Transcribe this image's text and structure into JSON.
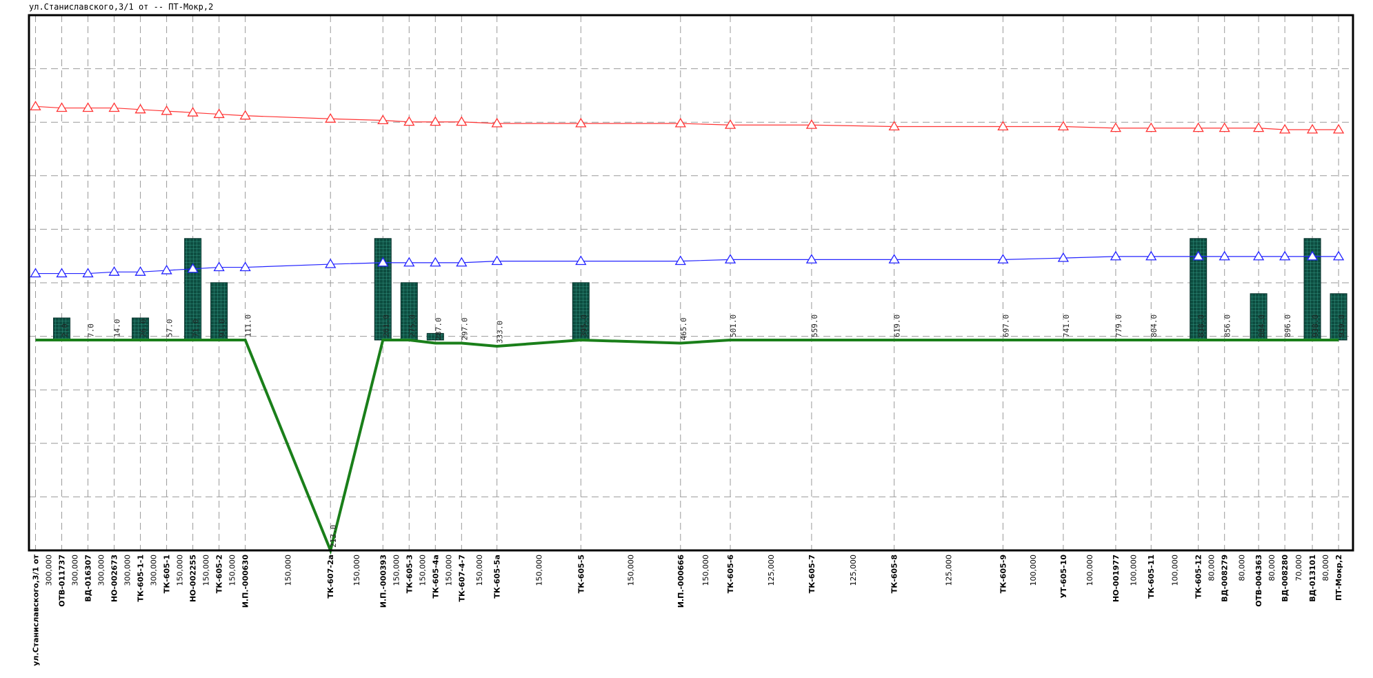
{
  "title": "ул.Станиславского,3/1 от -- ПТ-Мокр,2",
  "colors": {
    "upper_line": "#ff3333",
    "lower_line": "#2222ff",
    "profile_line": "#1a7f1a",
    "bars": "#0d4d40",
    "bars_grid": "#3aa690",
    "grid": "#999999",
    "frame": "#000000"
  },
  "chart_data": {
    "type": "line",
    "x_range": [
      -5,
      1005
    ],
    "nodes": [
      {
        "name": "ул.Станиславского,3/1 от",
        "x": 0,
        "upper": 95.1,
        "lower": 84.3,
        "ground": 80,
        "bar": 0,
        "dist_label": ""
      },
      {
        "name": "ОТВ-011737",
        "x": 20,
        "upper": 95.0,
        "lower": 84.3,
        "ground": 80,
        "bar": 1.0,
        "dist_label": "2.0"
      },
      {
        "name": "ВД-016307",
        "x": 40,
        "upper": 95.0,
        "lower": 84.3,
        "ground": 80,
        "bar": 0,
        "dist_label": "7.0"
      },
      {
        "name": "НО-002673",
        "x": 60,
        "upper": 95.0,
        "lower": 84.4,
        "ground": 80,
        "bar": 0,
        "dist_label": "14.0"
      },
      {
        "name": "ТК-605-1-1",
        "x": 80,
        "upper": 94.9,
        "lower": 84.4,
        "ground": 80,
        "bar": 1.0,
        "dist_label": "26.0"
      },
      {
        "name": "ТК-605-1",
        "x": 100,
        "upper": 94.8,
        "lower": 84.5,
        "ground": 80,
        "bar": 0,
        "dist_label": "57.0"
      },
      {
        "name": "НО-002255",
        "x": 120,
        "upper": 94.7,
        "lower": 84.6,
        "ground": 80,
        "bar": 4.6,
        "dist_label": "71.0"
      },
      {
        "name": "ТК-605-2",
        "x": 140,
        "upper": 94.6,
        "lower": 84.7,
        "ground": 80,
        "bar": 2.6,
        "dist_label": "91.0"
      },
      {
        "name": "И.П.-000630",
        "x": 160,
        "upper": 94.5,
        "lower": 84.7,
        "ground": 80,
        "bar": 0,
        "dist_label": "111.0"
      },
      {
        "name": "ТК-607-2а",
        "x": 225,
        "upper": 94.3,
        "lower": 84.9,
        "ground": 66.4,
        "bar": 0,
        "dist_label": "213.0"
      },
      {
        "name": "И.П.-000393",
        "x": 265,
        "upper": 94.2,
        "lower": 85.0,
        "ground": 80,
        "bar": 4.6,
        "dist_label": "261.0"
      },
      {
        "name": "ТК-605-3",
        "x": 285,
        "upper": 94.1,
        "lower": 85.0,
        "ground": 80,
        "bar": 2.6,
        "dist_label": "275.0"
      },
      {
        "name": "ТК-605-4а",
        "x": 305,
        "upper": 94.1,
        "lower": 85.0,
        "ground": 79.8,
        "bar": 0.3,
        "dist_label": "287.0"
      },
      {
        "name": "ТК-607-4-7",
        "x": 325,
        "upper": 94.1,
        "lower": 85.0,
        "ground": 79.8,
        "bar": 0,
        "dist_label": "297.0"
      },
      {
        "name": "ТК-605-5а",
        "x": 352,
        "upper": 94.0,
        "lower": 85.1,
        "ground": 79.6,
        "bar": 0,
        "dist_label": "333.0"
      },
      {
        "name": "ТК-605-5",
        "x": 416,
        "upper": 94.0,
        "lower": 85.1,
        "ground": 80,
        "bar": 2.6,
        "dist_label": "395.0"
      },
      {
        "name": "И.П.-000666",
        "x": 492,
        "upper": 94.0,
        "lower": 85.1,
        "ground": 79.8,
        "bar": 0,
        "dist_label": "465.0"
      },
      {
        "name": "ТК-605-6",
        "x": 530,
        "upper": 93.9,
        "lower": 85.2,
        "ground": 80,
        "bar": 0,
        "dist_label": "501.0"
      },
      {
        "name": "ТК-605-7",
        "x": 592,
        "upper": 93.9,
        "lower": 85.2,
        "ground": 80,
        "bar": 0,
        "dist_label": "559.0"
      },
      {
        "name": "ТК-605-8",
        "x": 655,
        "upper": 93.8,
        "lower": 85.2,
        "ground": 80,
        "bar": 0,
        "dist_label": "619.0"
      },
      {
        "name": "ТК-605-9",
        "x": 738,
        "upper": 93.8,
        "lower": 85.2,
        "ground": 80,
        "bar": 0,
        "dist_label": "697.0"
      },
      {
        "name": "УТ-605-10",
        "x": 784,
        "upper": 93.8,
        "lower": 85.3,
        "ground": 80,
        "bar": 0,
        "dist_label": "741.0"
      },
      {
        "name": "НО-001977",
        "x": 824,
        "upper": 93.7,
        "lower": 85.4,
        "ground": 80,
        "bar": 0,
        "dist_label": "779.0"
      },
      {
        "name": "ТК-605-11",
        "x": 851,
        "upper": 93.7,
        "lower": 85.4,
        "ground": 80,
        "bar": 0,
        "dist_label": "804.0"
      },
      {
        "name": "ТК-605-12",
        "x": 887,
        "upper": 93.7,
        "lower": 85.4,
        "ground": 80,
        "bar": 4.6,
        "dist_label": "838.0"
      },
      {
        "name": "ВД-008279",
        "x": 907,
        "upper": 93.7,
        "lower": 85.4,
        "ground": 80,
        "bar": 0,
        "dist_label": "856.0"
      },
      {
        "name": "ОТВ-004363",
        "x": 933,
        "upper": 93.7,
        "lower": 85.4,
        "ground": 80,
        "bar": 2.1,
        "dist_label": "884.0"
      },
      {
        "name": "ВД-008280",
        "x": 953,
        "upper": 93.6,
        "lower": 85.4,
        "ground": 80,
        "bar": 0,
        "dist_label": "896.0"
      },
      {
        "name": "ВД-013101",
        "x": 974,
        "upper": 93.6,
        "lower": 85.4,
        "ground": 80,
        "bar": 4.6,
        "dist_label": "938.0"
      },
      {
        "name": "ПТ-Мокр,2",
        "x": 994,
        "upper": 93.6,
        "lower": 85.4,
        "ground": 80,
        "bar": 2.1,
        "dist_label": "939.0"
      }
    ],
    "segment_lengths": [
      "300,000",
      "300,000",
      "300,000",
      "300,000",
      "300,000",
      "150,000",
      "150,000",
      "150,000",
      "150,000",
      "150,000",
      "150,000",
      "150,000",
      "150,000",
      "150,000",
      "150,000",
      "150,000",
      "150,000",
      "125,000",
      "125,000",
      "125,000",
      "100,000",
      "100,000",
      "100,000",
      "100,000",
      "80,000",
      "80,000",
      "80,000",
      "70,000",
      "80,000"
    ],
    "y_range": [
      66.4,
      101
    ],
    "grid": true
  }
}
